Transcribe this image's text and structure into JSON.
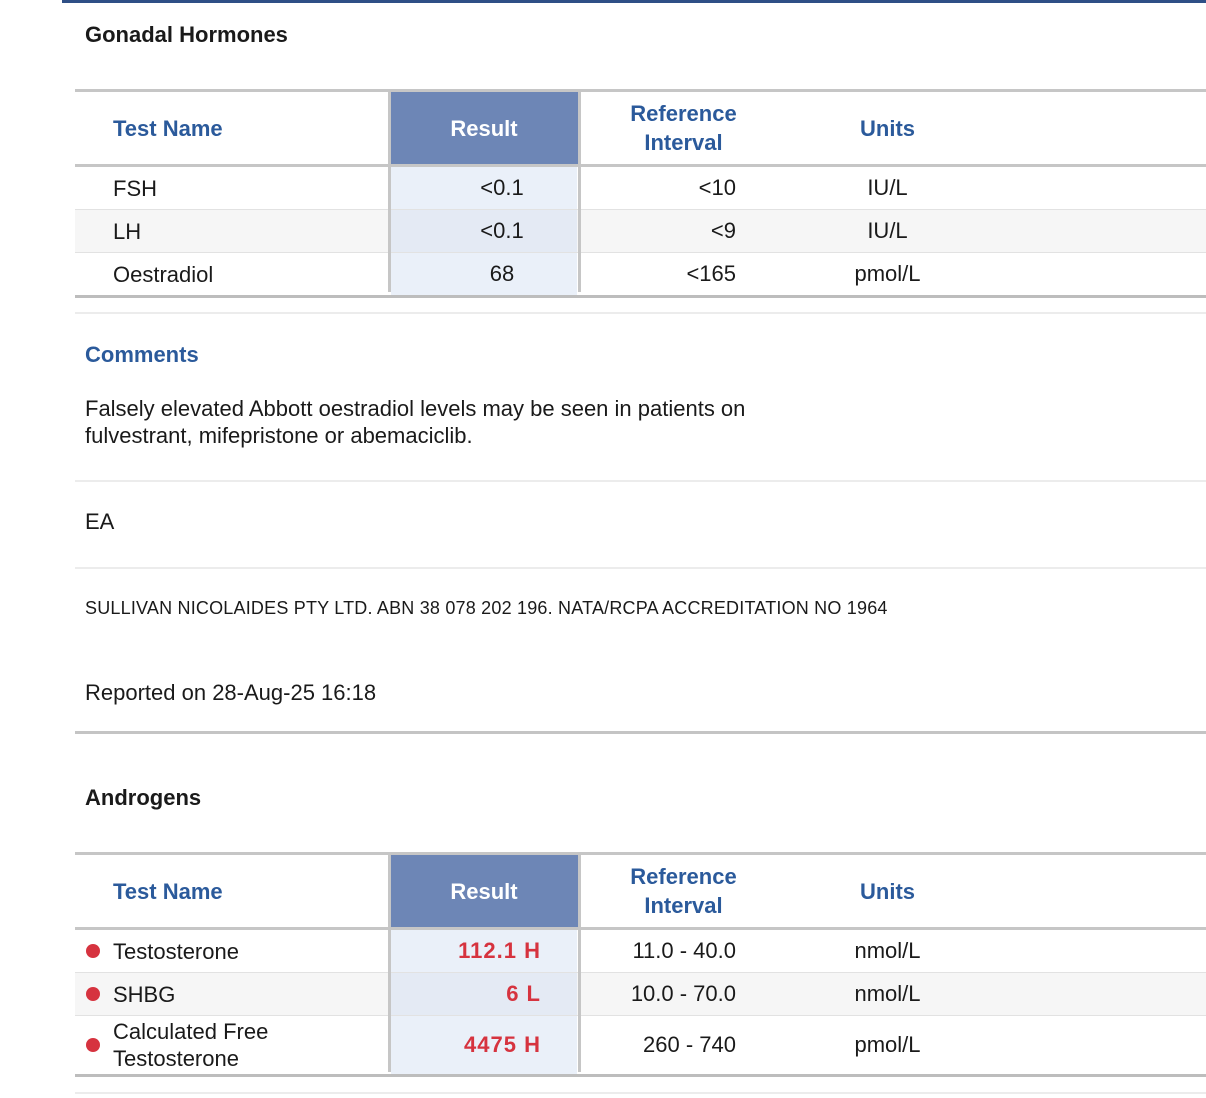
{
  "gonadal": {
    "title": "Gonadal Hormones",
    "headers": {
      "name": "Test Name",
      "result": "Result",
      "ref_line1": "Reference",
      "ref_line2": "Interval",
      "units": "Units"
    },
    "rows": [
      {
        "name": "FSH",
        "result": "<0.1",
        "ref": "<10",
        "units": "IU/L"
      },
      {
        "name": "LH",
        "result": "<0.1",
        "ref": "<9",
        "units": "IU/L"
      },
      {
        "name": "Oestradiol",
        "result": "68",
        "ref": "<165",
        "units": "pmol/L"
      }
    ]
  },
  "comments": {
    "title": "Comments",
    "line1": "Falsely elevated Abbott oestradiol levels may be seen in patients on",
    "line2": "fulvestrant, mifepristone or abemaciclib."
  },
  "initials": "EA",
  "lab_line": "SULLIVAN NICOLAIDES PTY LTD. ABN 38 078 202 196. NATA/RCPA ACCREDITATION NO 1964",
  "reported": "Reported on 28-Aug-25 16:18",
  "androgens": {
    "title": "Androgens",
    "headers": {
      "name": "Test Name",
      "result": "Result",
      "ref_line1": "Reference",
      "ref_line2": "Interval",
      "units": "Units"
    },
    "rows": [
      {
        "name": "Testosterone",
        "result": "112.1  H",
        "ref": "11.0 - 40.0",
        "units": "nmol/L"
      },
      {
        "name": "SHBG",
        "result": "6  L",
        "ref": "10.0 - 70.0",
        "units": "nmol/L"
      },
      {
        "name_line1": "Calculated Free",
        "name_line2": "Testosterone",
        "result": "4475  H",
        "ref": "260 - 740",
        "units": "pmol/L"
      }
    ]
  },
  "colors": {
    "accent": "#2b5a9b",
    "result_header": "#6d86b6",
    "flag": "#d6333f"
  }
}
